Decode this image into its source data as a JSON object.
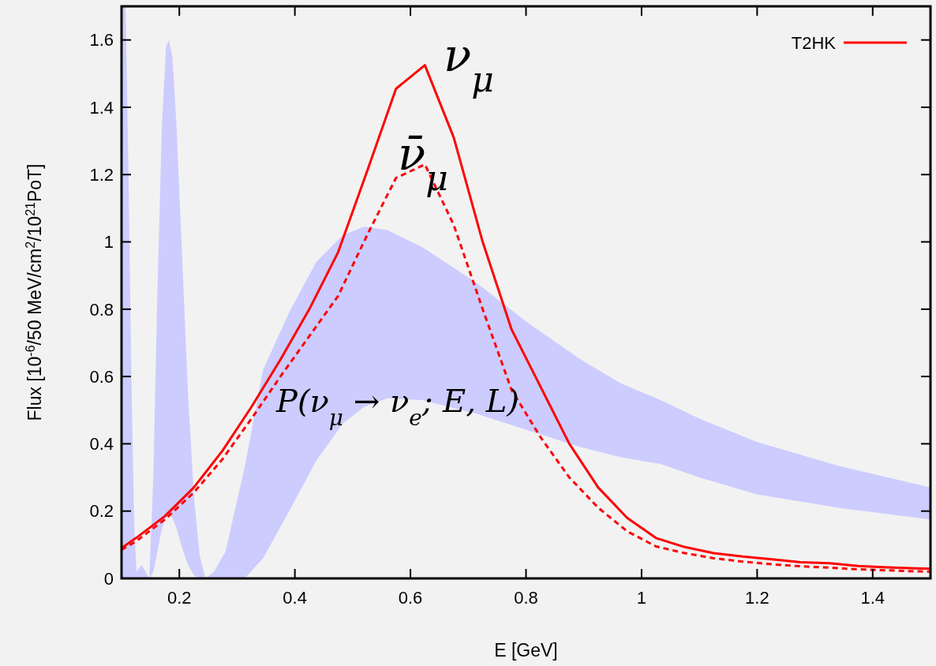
{
  "chart_data": {
    "type": "line",
    "xlabel": "E [GeV]",
    "ylabel": "Flux [10$^{-6}$/50 MeV/cm$^{2}$/10$^{21}$PoT]",
    "xlim": [
      0.1,
      1.5
    ],
    "ylim": [
      0,
      1.7
    ],
    "xticks": [
      0.2,
      0.4,
      0.6,
      0.8,
      1,
      1.2,
      1.4
    ],
    "yticks": [
      0,
      0.2,
      0.4,
      0.6,
      0.8,
      1,
      1.2,
      1.4,
      1.6
    ],
    "grid": false,
    "legend": "top right",
    "marker": "none",
    "series": [
      {
        "color": "#ccccff",
        "x": [
          0.1,
          0.107,
          0.112,
          0.117,
          0.122,
          0.126,
          0.135,
          0.148,
          0.155,
          0.162,
          0.17,
          0.177,
          0.182,
          0.188,
          0.195,
          0.205,
          0.215,
          0.225,
          0.235,
          0.245,
          0.26,
          0.28,
          0.313,
          0.345,
          0.39,
          0.437,
          0.483,
          0.52,
          0.56,
          0.62,
          0.713,
          0.803,
          0.895,
          0.964,
          1.033,
          1.1,
          1.2,
          1.34,
          1.5
        ],
        "values": [
          null,
          null,
          null,
          null,
          null,
          null,
          null,
          null,
          null,
          null,
          null,
          null,
          null,
          null,
          null,
          null,
          null,
          null,
          null,
          null,
          null,
          null,
          null,
          null,
          null,
          null,
          null,
          null,
          null,
          null,
          null,
          null,
          null,
          null,
          null,
          null,
          null,
          null,
          null
        ],
        "upper": [
          1.7,
          1.7,
          1.2,
          0.6,
          0.15,
          0.02,
          0.04,
          0.0,
          0.3,
          0.85,
          1.35,
          1.58,
          1.6,
          1.55,
          1.35,
          0.95,
          0.55,
          0.25,
          0.07,
          0.0,
          0.02,
          0.08,
          0.33,
          0.62,
          0.79,
          0.94,
          1.02,
          1.045,
          1.035,
          0.985,
          0.88,
          0.76,
          0.65,
          0.58,
          0.53,
          0.475,
          0.405,
          0.335,
          0.27
        ],
        "lower": [
          0,
          0,
          0,
          0,
          0,
          0,
          0,
          0,
          0.02,
          0.08,
          0.15,
          0.18,
          0.19,
          0.18,
          0.15,
          0.09,
          0.04,
          0.01,
          0,
          0,
          0,
          0,
          0,
          0.06,
          0.2,
          0.35,
          0.46,
          0.51,
          0.535,
          0.53,
          0.49,
          0.44,
          0.39,
          0.36,
          0.34,
          0.3,
          0.25,
          0.21,
          0.175
        ]
      },
      {
        "name": "T2HK",
        "color": "#ff0000",
        "line_style": "solid",
        "x": [
          0.1,
          0.125,
          0.175,
          0.225,
          0.275,
          0.325,
          0.375,
          0.425,
          0.475,
          0.525,
          0.575,
          0.625,
          0.675,
          0.725,
          0.775,
          0.825,
          0.875,
          0.925,
          0.975,
          1.025,
          1.075,
          1.125,
          1.175,
          1.225,
          1.275,
          1.325,
          1.375,
          1.425,
          1.475,
          1.5
        ],
        "values": [
          0.09,
          0.12,
          0.185,
          0.27,
          0.38,
          0.51,
          0.65,
          0.8,
          0.97,
          1.21,
          1.455,
          1.525,
          1.31,
          1.0,
          0.74,
          0.57,
          0.4,
          0.27,
          0.18,
          0.12,
          0.093,
          0.075,
          0.065,
          0.057,
          0.048,
          0.045,
          0.037,
          0.033,
          0.03,
          0.029
        ]
      },
      {
        "color": "#ff0000",
        "line_style": "dashed",
        "x": [
          0.1,
          0.125,
          0.175,
          0.225,
          0.275,
          0.325,
          0.375,
          0.425,
          0.475,
          0.525,
          0.575,
          0.625,
          0.675,
          0.725,
          0.775,
          0.825,
          0.875,
          0.925,
          0.975,
          1.025,
          1.075,
          1.125,
          1.175,
          1.225,
          1.275,
          1.325,
          1.375,
          1.425,
          1.475,
          1.5
        ],
        "values": [
          0.085,
          0.11,
          0.175,
          0.255,
          0.355,
          0.475,
          0.6,
          0.72,
          0.84,
          1.02,
          1.19,
          1.23,
          1.05,
          0.8,
          0.56,
          0.42,
          0.3,
          0.21,
          0.14,
          0.095,
          0.075,
          0.06,
          0.05,
          0.042,
          0.036,
          0.032,
          0.027,
          0.024,
          0.021,
          0.02
        ]
      }
    ],
    "annotations": [
      "ν$_{μ}$",
      "ν̄$_{μ}$",
      "P(ν$_{μ}$ → ν$_{e}$; E, L)"
    ]
  }
}
